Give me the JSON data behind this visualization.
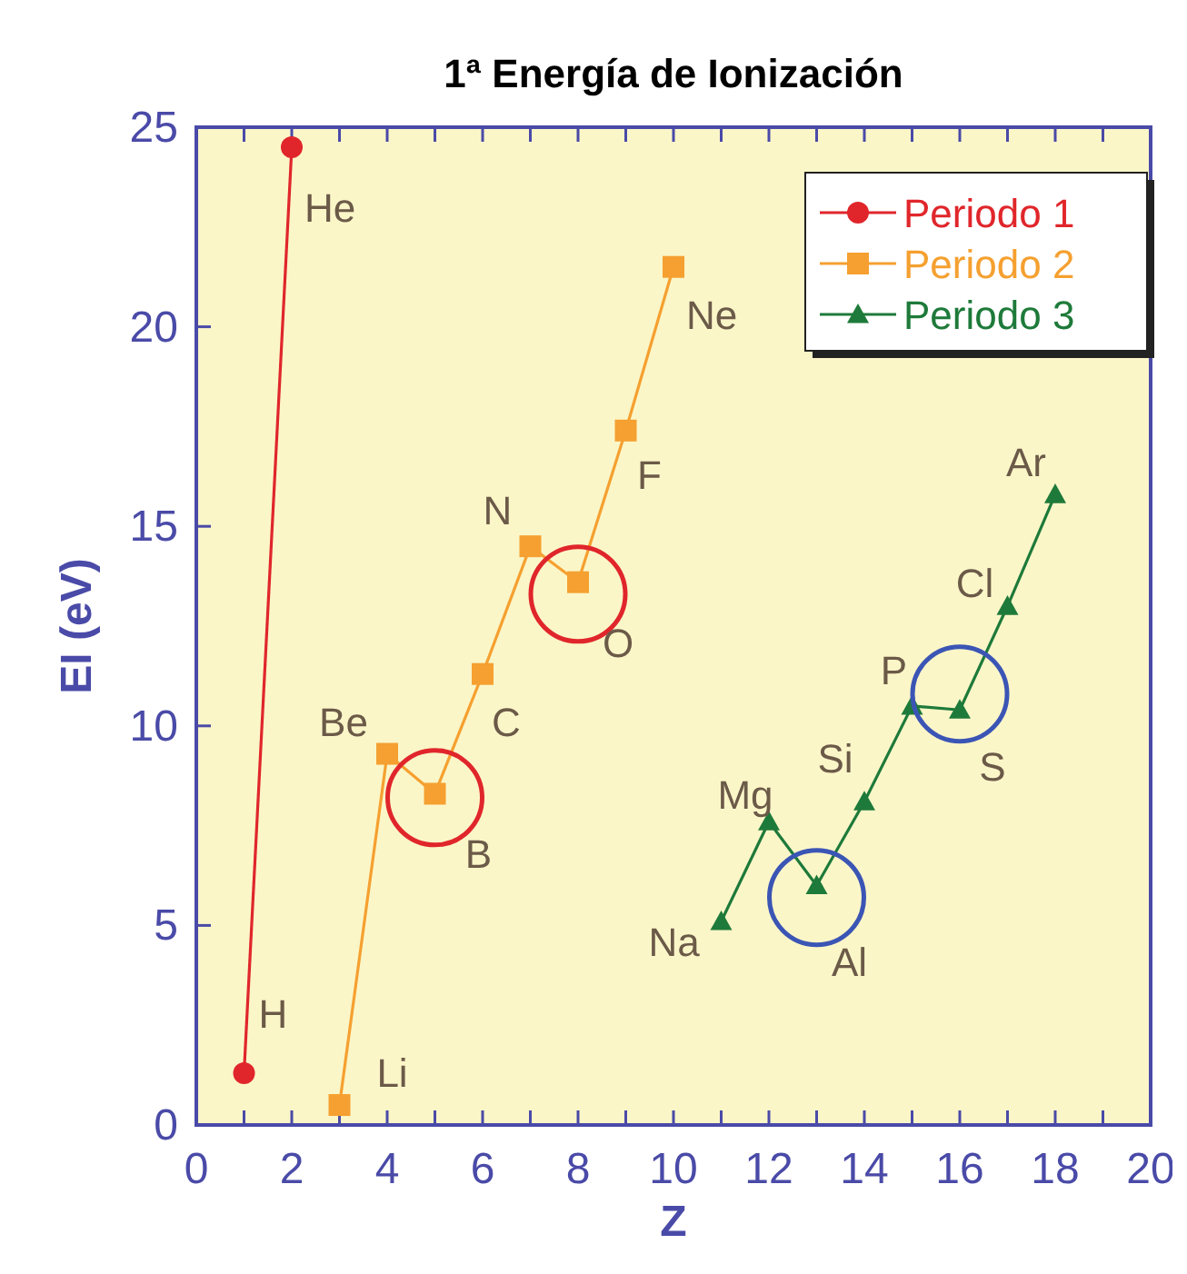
{
  "chart_data": {
    "type": "line",
    "title": "1ª Energía de Ionización",
    "xlabel": "Z",
    "ylabel": "EI (eV)",
    "xlim": [
      0,
      20
    ],
    "xticks": [
      0,
      {
        "value": 1,
        "label": null
      },
      2,
      {
        "value": 3,
        "label": null
      },
      4,
      {
        "value": 5,
        "label": null
      },
      6,
      {
        "value": 7,
        "label": null
      },
      8,
      {
        "value": 9,
        "label": null
      },
      10,
      {
        "value": 11,
        "label": null
      },
      12,
      {
        "value": 13,
        "label": null
      },
      14,
      {
        "value": 15,
        "label": null
      },
      16,
      {
        "value": 17,
        "label": null
      },
      18,
      {
        "value": 19,
        "label": null
      },
      20
    ],
    "ylim": [
      0,
      25
    ],
    "yticks": [
      0,
      5,
      10,
      15,
      20,
      25
    ],
    "grid": false,
    "legend": "top right",
    "series": [
      {
        "name": "Periodo 1",
        "color": "#e0262b",
        "marker": "circle",
        "x": [
          1,
          2
        ],
        "values": [
          1.3,
          24.5
        ]
      },
      {
        "name": "Periodo 2",
        "color": "#f5a030",
        "marker": "square",
        "x": [
          3,
          4,
          5,
          6,
          7,
          8,
          9,
          10
        ],
        "values": [
          0.5,
          9.3,
          8.3,
          11.3,
          14.5,
          13.6,
          17.4,
          21.5
        ]
      },
      {
        "name": "Periodo 3",
        "color": "#1e7a3a",
        "marker": "triangle",
        "x": [
          11,
          12,
          13,
          14,
          15,
          16,
          17,
          18
        ],
        "values": [
          5.1,
          7.6,
          6.0,
          8.1,
          10.5,
          10.4,
          13.0,
          15.8
        ]
      },
      {
        "type": "scatter",
        "marker": "circle",
        "x": [
          5,
          8,
          13,
          16
        ],
        "values": [
          8.2,
          13.3,
          5.7,
          10.8
        ],
        "colors": [
          "#e0262b",
          "#e0262b",
          "#3b55b5",
          "#3b55b5"
        ]
      }
    ],
    "annotations": [
      {
        "text": "He",
        "x": 2,
        "y": 24.5
      },
      {
        "text": "H",
        "x": 1,
        "y": 1.3
      },
      {
        "text": "Li",
        "x": 3,
        "y": 0.5
      },
      {
        "text": "Be",
        "x": 4,
        "y": 9.3
      },
      {
        "text": "B",
        "x": 5,
        "y": 8.3
      },
      {
        "text": "C",
        "x": 6,
        "y": 11.3
      },
      {
        "text": "N",
        "x": 7,
        "y": 14.5
      },
      {
        "text": "O",
        "x": 8,
        "y": 13.6
      },
      {
        "text": "F",
        "x": 9,
        "y": 17.4
      },
      {
        "text": "Ne",
        "x": 10,
        "y": 21.5
      },
      {
        "text": "Na",
        "x": 11,
        "y": 5.1
      },
      {
        "text": "Mg",
        "x": 12,
        "y": 7.6
      },
      {
        "text": "Al",
        "x": 13,
        "y": 6.0
      },
      {
        "text": "Si",
        "x": 14,
        "y": 8.1
      },
      {
        "text": "P",
        "x": 15,
        "y": 10.5
      },
      {
        "text": "S",
        "x": 16,
        "y": 10.4
      },
      {
        "text": "Cl",
        "x": 17,
        "y": 13.0
      },
      {
        "text": "Ar",
        "x": 18,
        "y": 15.8
      }
    ]
  }
}
